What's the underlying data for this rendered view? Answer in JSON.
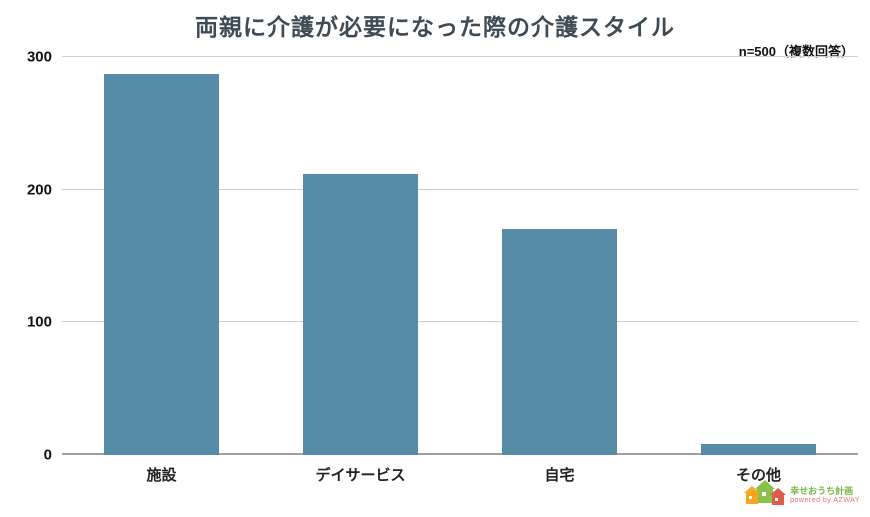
{
  "chart_data": {
    "type": "bar",
    "title": "両親に介護が必要になった際の介護スタイル",
    "note": "n=500（複数回答）",
    "categories": [
      "施設",
      "デイサービス",
      "自宅",
      "その他"
    ],
    "values": [
      287,
      212,
      170,
      8
    ],
    "ylim": [
      0,
      300
    ],
    "yticks": [
      0,
      100,
      200,
      300
    ],
    "bar_color": "#568ca5",
    "grid": true,
    "legend": "none",
    "xlabel": "",
    "ylabel": ""
  },
  "footer": {
    "logo_text": "幸せおうち計画",
    "logo_sub": "powered by AZWAY"
  }
}
